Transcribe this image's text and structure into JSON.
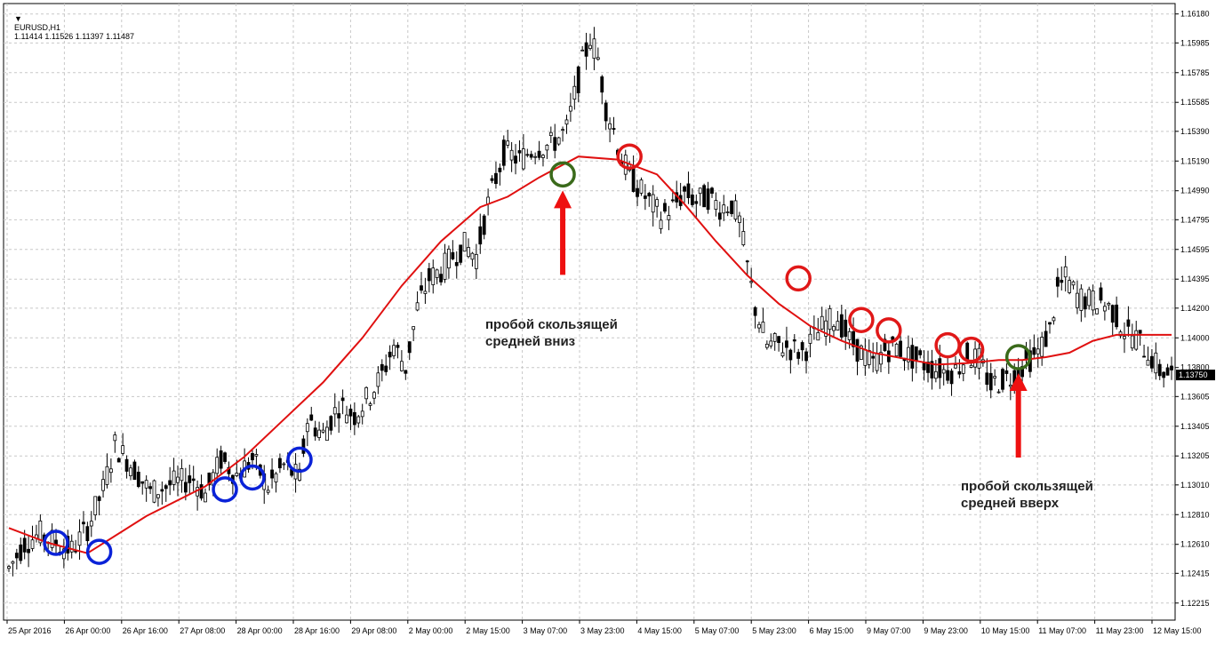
{
  "header": {
    "symbol": "EURUSD,H1",
    "quote": "1.11414 1.11526 1.11397 1.11487",
    "menu_marker": "▼"
  },
  "chart_data": {
    "type": "candlestick",
    "price_axis": {
      "ticks": [
        "1.16180",
        "1.15985",
        "1.15785",
        "1.15585",
        "1.15390",
        "1.15190",
        "1.14990",
        "1.14795",
        "1.14595",
        "1.14395",
        "1.14200",
        "1.14000",
        "1.13800",
        "1.13605",
        "1.13405",
        "1.13205",
        "1.13010",
        "1.12810",
        "1.12610",
        "1.12415",
        "1.12215"
      ],
      "range": [
        1.121,
        1.1625
      ],
      "position": "right"
    },
    "time_axis": {
      "ticks": [
        "25 Apr 2016",
        "26 Apr 00:00",
        "26 Apr 16:00",
        "27 Apr 08:00",
        "28 Apr 00:00",
        "28 Apr 16:00",
        "29 Apr 08:00",
        "2 May 00:00",
        "2 May 15:00",
        "3 May 07:00",
        "3 May 23:00",
        "4 May 15:00",
        "5 May 07:00",
        "5 May 23:00",
        "6 May 15:00",
        "9 May 07:00",
        "9 May 23:00",
        "10 May 15:00",
        "11 May 07:00",
        "11 May 23:00",
        "12 May 15:00"
      ]
    },
    "grid": true,
    "price_path": [
      [
        0,
        1.1245
      ],
      [
        4,
        1.1262
      ],
      [
        8,
        1.1268
      ],
      [
        12,
        1.1262
      ],
      [
        16,
        1.1257
      ],
      [
        20,
        1.1272
      ],
      [
        24,
        1.1298
      ],
      [
        27,
        1.1328
      ],
      [
        31,
        1.1315
      ],
      [
        36,
        1.1296
      ],
      [
        42,
        1.1302
      ],
      [
        47,
        1.1305
      ],
      [
        50,
        1.1295
      ],
      [
        54,
        1.1318
      ],
      [
        58,
        1.1308
      ],
      [
        62,
        1.1318
      ],
      [
        66,
        1.13
      ],
      [
        70,
        1.1314
      ],
      [
        74,
        1.1305
      ],
      [
        76,
        1.1345
      ],
      [
        80,
        1.1335
      ],
      [
        84,
        1.1355
      ],
      [
        88,
        1.1348
      ],
      [
        92,
        1.1362
      ],
      [
        95,
        1.1375
      ],
      [
        98,
        1.1395
      ],
      [
        101,
        1.138
      ],
      [
        104,
        1.142
      ],
      [
        107,
        1.144
      ],
      [
        110,
        1.1445
      ],
      [
        113,
        1.1455
      ],
      [
        116,
        1.1462
      ],
      [
        119,
        1.1455
      ],
      [
        122,
        1.149
      ],
      [
        126,
        1.1525
      ],
      [
        130,
        1.152
      ],
      [
        134,
        1.1528
      ],
      [
        138,
        1.153
      ],
      [
        142,
        1.154
      ],
      [
        146,
        1.1585
      ],
      [
        148,
        1.1602
      ],
      [
        150,
        1.1588
      ],
      [
        152,
        1.1555
      ],
      [
        154,
        1.154
      ],
      [
        156,
        1.152
      ],
      [
        158,
        1.151
      ],
      [
        160,
        1.1502
      ],
      [
        163,
        1.1492
      ],
      [
        166,
        1.1482
      ],
      [
        169,
        1.1488
      ],
      [
        172,
        1.1498
      ],
      [
        175,
        1.1492
      ],
      [
        178,
        1.1495
      ],
      [
        181,
        1.1488
      ],
      [
        184,
        1.149
      ],
      [
        186,
        1.1478
      ],
      [
        188,
        1.1448
      ],
      [
        190,
        1.142
      ],
      [
        193,
        1.1395
      ],
      [
        196,
        1.1395
      ],
      [
        199,
        1.1393
      ],
      [
        202,
        1.139
      ],
      [
        205,
        1.14
      ],
      [
        208,
        1.141
      ],
      [
        211,
        1.1414
      ],
      [
        214,
        1.1398
      ],
      [
        217,
        1.139
      ],
      [
        220,
        1.1382
      ],
      [
        223,
        1.1392
      ],
      [
        226,
        1.1394
      ],
      [
        229,
        1.1388
      ],
      [
        232,
        1.1384
      ],
      [
        235,
        1.138
      ],
      [
        238,
        1.1378
      ],
      [
        241,
        1.1378
      ],
      [
        244,
        1.1388
      ],
      [
        247,
        1.1385
      ],
      [
        250,
        1.1368
      ],
      [
        253,
        1.1372
      ],
      [
        256,
        1.1375
      ],
      [
        259,
        1.1384
      ],
      [
        262,
        1.139
      ],
      [
        265,
        1.1405
      ],
      [
        267,
        1.1432
      ],
      [
        269,
        1.144
      ],
      [
        272,
        1.1428
      ],
      [
        275,
        1.1425
      ],
      [
        278,
        1.1425
      ],
      [
        281,
        1.1418
      ],
      [
        284,
        1.1405
      ],
      [
        287,
        1.14
      ],
      [
        290,
        1.139
      ],
      [
        293,
        1.1378
      ],
      [
        296,
        1.1375
      ]
    ],
    "moving_average": {
      "color": "#e01010",
      "path": [
        [
          0,
          1.1272
        ],
        [
          10,
          1.1262
        ],
        [
          20,
          1.1255
        ],
        [
          35,
          1.128
        ],
        [
          50,
          1.13
        ],
        [
          60,
          1.132
        ],
        [
          70,
          1.1345
        ],
        [
          80,
          1.137
        ],
        [
          90,
          1.14
        ],
        [
          100,
          1.1435
        ],
        [
          110,
          1.1465
        ],
        [
          120,
          1.1488
        ],
        [
          127,
          1.1495
        ],
        [
          135,
          1.1508
        ],
        [
          145,
          1.1522
        ],
        [
          155,
          1.152
        ],
        [
          165,
          1.151
        ],
        [
          172,
          1.149
        ],
        [
          180,
          1.1465
        ],
        [
          188,
          1.1442
        ],
        [
          196,
          1.1423
        ],
        [
          204,
          1.1408
        ],
        [
          212,
          1.1398
        ],
        [
          220,
          1.139
        ],
        [
          228,
          1.1386
        ],
        [
          236,
          1.1382
        ],
        [
          244,
          1.1383
        ],
        [
          252,
          1.1385
        ],
        [
          258,
          1.1385
        ],
        [
          264,
          1.1387
        ],
        [
          270,
          1.139
        ],
        [
          276,
          1.1398
        ],
        [
          282,
          1.1402
        ],
        [
          290,
          1.1402
        ],
        [
          296,
          1.1402
        ]
      ]
    },
    "blue_circles": [
      [
        12,
        1.1262
      ],
      [
        23,
        1.1256
      ],
      [
        55,
        1.1298
      ],
      [
        62,
        1.1306
      ],
      [
        74,
        1.1318
      ]
    ],
    "red_circles": [
      [
        158,
        1.1522
      ],
      [
        201,
        1.144
      ],
      [
        217,
        1.1412
      ],
      [
        224,
        1.1405
      ],
      [
        239,
        1.1395
      ],
      [
        245,
        1.1392
      ]
    ],
    "green_circles": [
      [
        141,
        1.151
      ],
      [
        257,
        1.1387
      ]
    ],
    "annotations": [
      {
        "text_line1": "пробой скользящей",
        "text_line2": "средней вниз"
      },
      {
        "text_line1": "пробой скользящей",
        "text_line2": "средней вверх"
      }
    ]
  }
}
